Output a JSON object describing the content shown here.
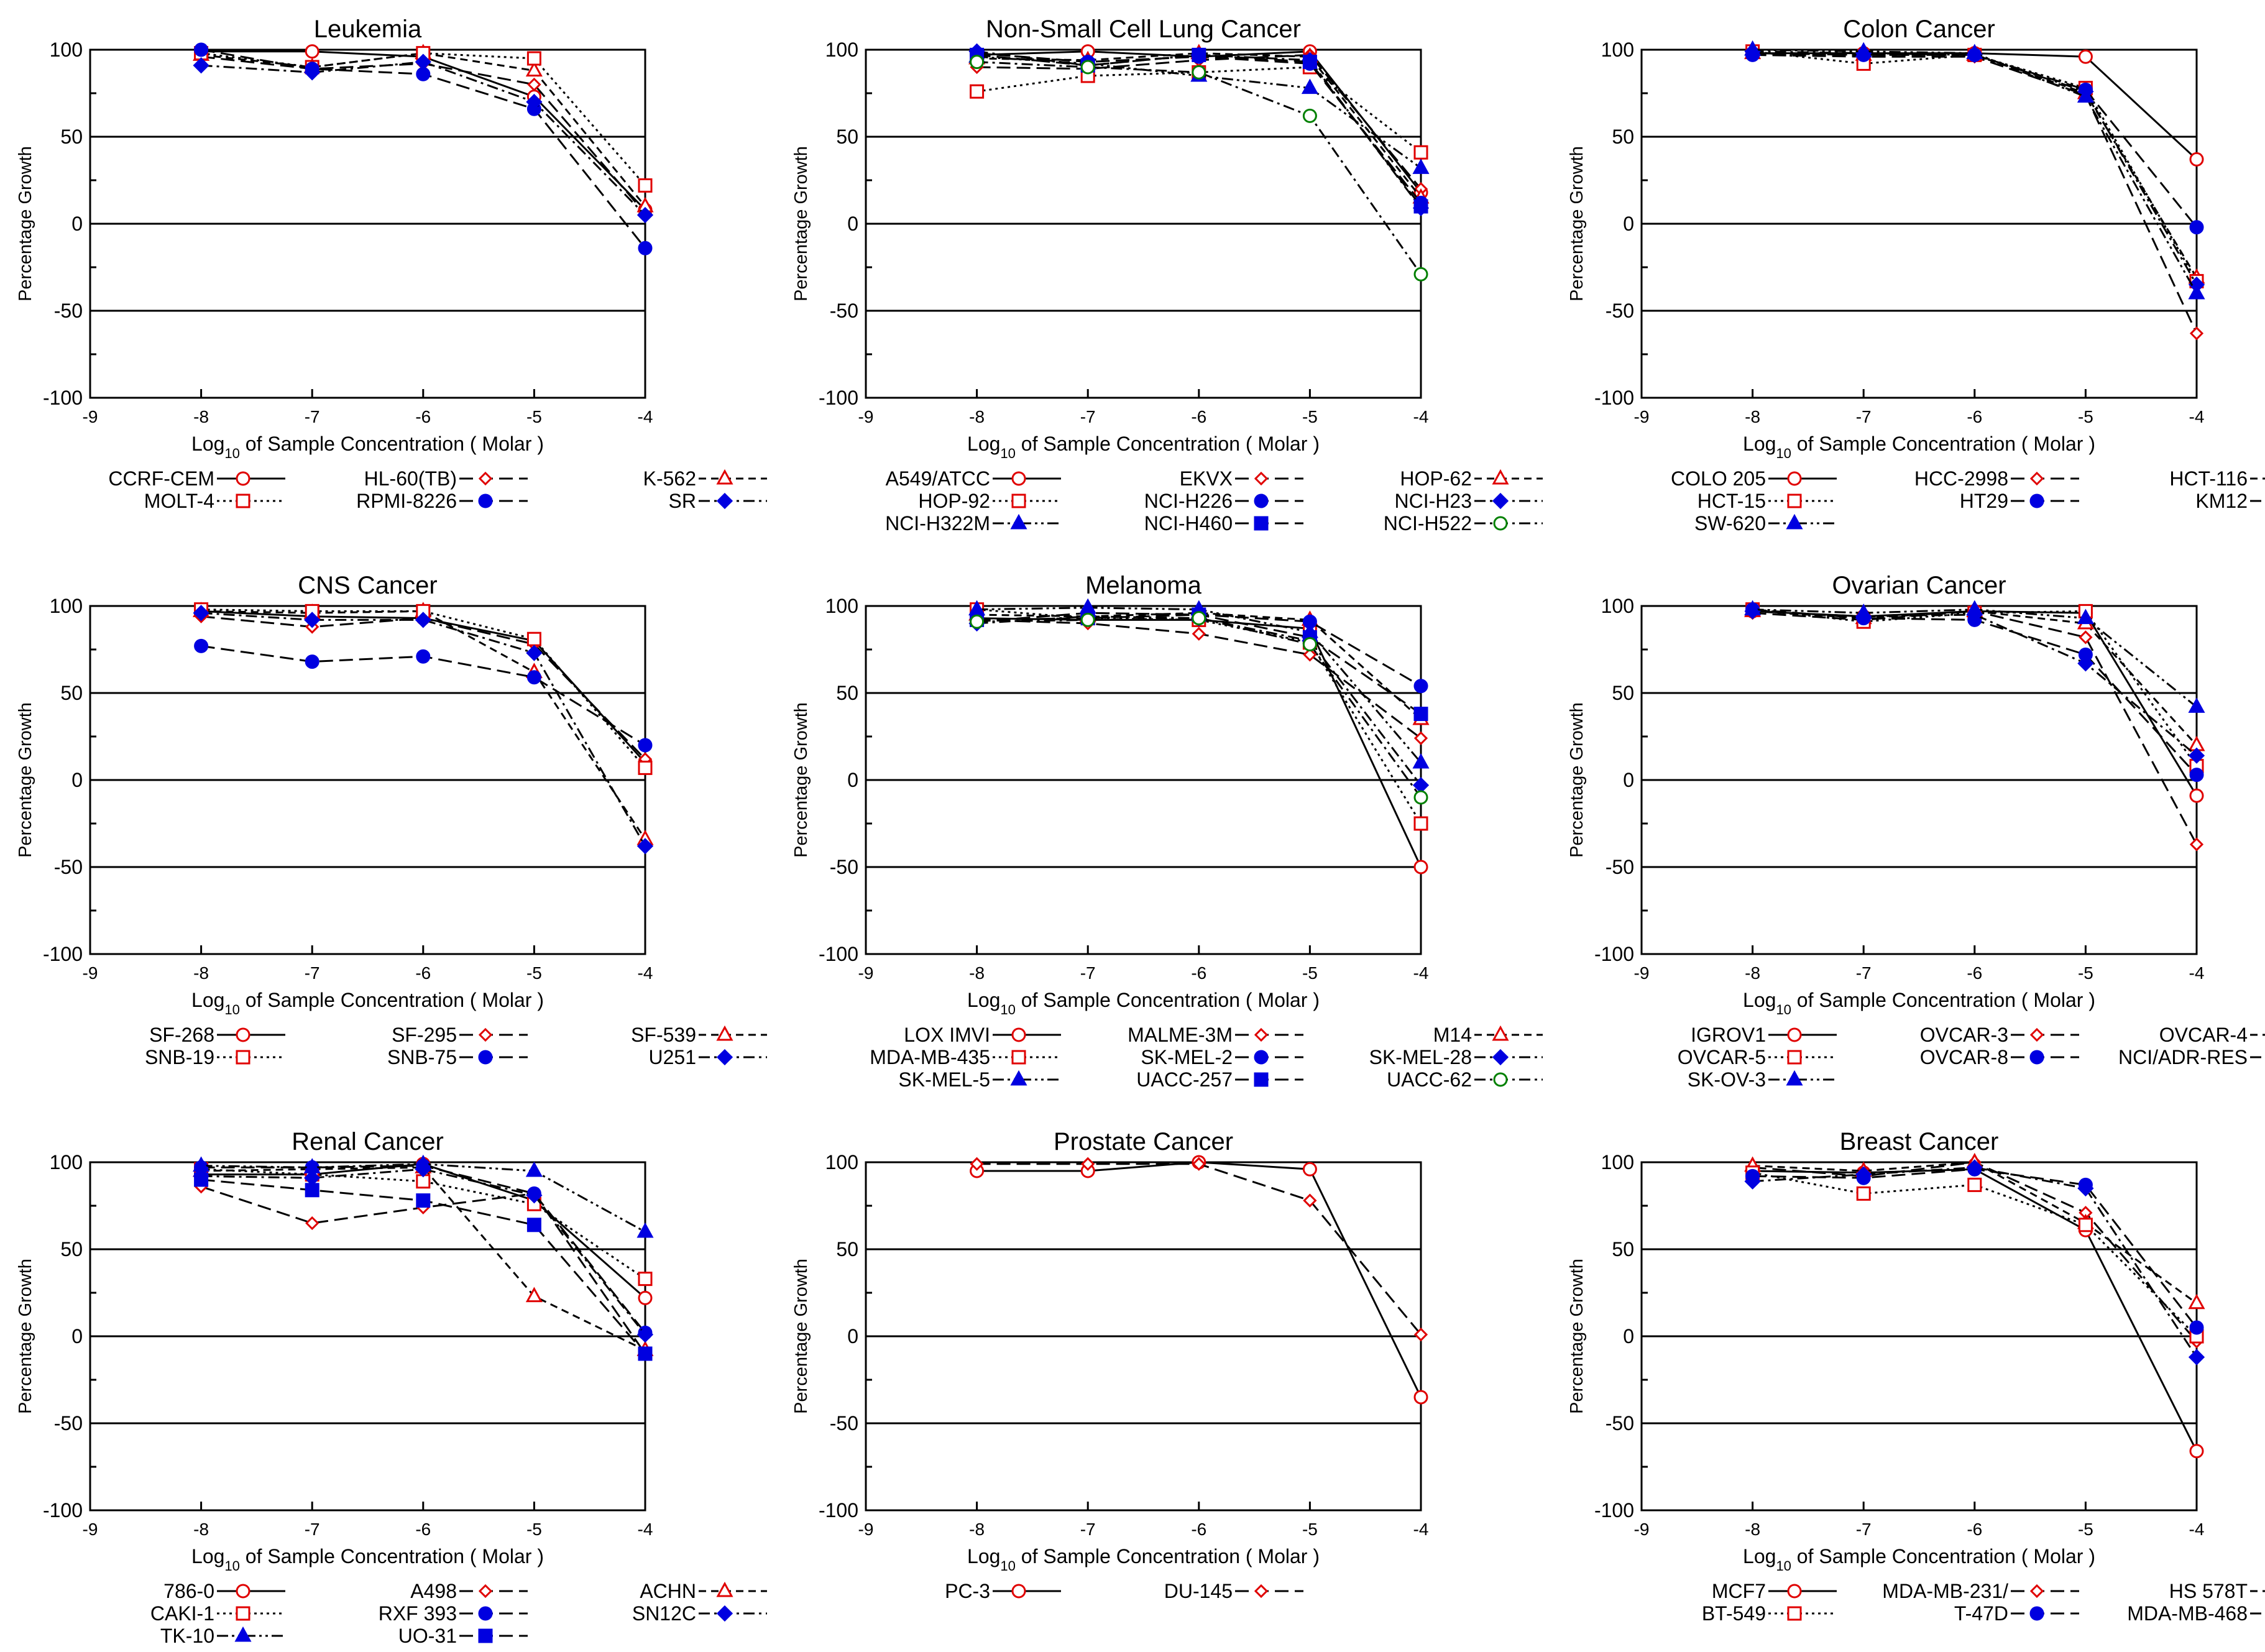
{
  "colors": {
    "red": "#e00000",
    "blue": "#0000e0",
    "green": "#008000",
    "black": "#000000"
  },
  "axis": {
    "xlabel_pre": "Log",
    "xlabel_sub": "10",
    "xlabel_post": " of Sample Concentration ( Molar )",
    "ylabel": "Percentage Growth",
    "xticks": [
      "-9",
      "-8",
      "-7",
      "-6",
      "-5",
      "-4"
    ],
    "yticks": [
      "100",
      "50",
      "0",
      "-50",
      "-100"
    ]
  },
  "chart_data": [
    {
      "type": "line",
      "title": "Leukemia",
      "x": [
        -8,
        -7,
        -6,
        -5,
        -4
      ],
      "xlim": [
        -9,
        -4
      ],
      "ylim": [
        -100,
        100
      ],
      "xlabel": "Log10 of Sample Concentration ( Molar )",
      "ylabel": "Percentage Growth",
      "series": [
        {
          "name": "CCRF-CEM",
          "values": [
            99,
            99,
            96,
            73,
            8
          ],
          "color": "red",
          "marker": "circle",
          "dash": "solid"
        },
        {
          "name": "HL-60(TB)",
          "values": [
            96,
            89,
            92,
            80,
            6
          ],
          "color": "red",
          "marker": "diamond",
          "dash": "longdash"
        },
        {
          "name": "K-562",
          "values": [
            97,
            90,
            98,
            88,
            10
          ],
          "color": "red",
          "marker": "triangle",
          "dash": "dash"
        },
        {
          "name": "MOLT-4",
          "values": [
            98,
            90,
            98,
            95,
            22
          ],
          "color": "red",
          "marker": "square",
          "dash": "dot"
        },
        {
          "name": "RPMI-8226",
          "values": [
            100,
            89,
            86,
            66,
            -14
          ],
          "color": "blue",
          "marker": "circle-filled",
          "dash": "longdash"
        },
        {
          "name": "SR",
          "values": [
            91,
            87,
            93,
            70,
            5
          ],
          "color": "blue",
          "marker": "diamond-filled",
          "dash": "dashdot"
        }
      ]
    },
    {
      "type": "line",
      "title": "Non-Small Cell Lung Cancer",
      "x": [
        -8,
        -7,
        -6,
        -5,
        -4
      ],
      "xlim": [
        -9,
        -4
      ],
      "ylim": [
        -100,
        100
      ],
      "xlabel": "Log10 of Sample Concentration ( Molar )",
      "ylabel": "Percentage Growth",
      "series": [
        {
          "name": "A549/ATCC",
          "values": [
            97,
            99,
            96,
            99,
            18
          ],
          "color": "red",
          "marker": "circle",
          "dash": "solid"
        },
        {
          "name": "EKVX",
          "values": [
            90,
            89,
            94,
            97,
            20
          ],
          "color": "red",
          "marker": "diamond",
          "dash": "longdash"
        },
        {
          "name": "HOP-62",
          "values": [
            95,
            94,
            98,
            96,
            15
          ],
          "color": "red",
          "marker": "triangle",
          "dash": "dash"
        },
        {
          "name": "HOP-92",
          "values": [
            76,
            85,
            87,
            90,
            41
          ],
          "color": "red",
          "marker": "square",
          "dash": "dot"
        },
        {
          "name": "NCI-H226",
          "values": [
            98,
            93,
            96,
            92,
            12
          ],
          "color": "blue",
          "marker": "circle-filled",
          "dash": "longdash"
        },
        {
          "name": "NCI-H23",
          "values": [
            99,
            91,
            97,
            94,
            9
          ],
          "color": "blue",
          "marker": "diamond-filled",
          "dash": "dashdot"
        },
        {
          "name": "NCI-H322M",
          "values": [
            96,
            92,
            85,
            78,
            32
          ],
          "color": "blue",
          "marker": "triangle-filled",
          "dash": "dashdotdot"
        },
        {
          "name": "NCI-H460",
          "values": [
            97,
            91,
            97,
            93,
            10
          ],
          "color": "blue",
          "marker": "square-filled",
          "dash": "longdash"
        },
        {
          "name": "NCI-H522",
          "values": [
            93,
            90,
            87,
            62,
            -29
          ],
          "color": "green",
          "marker": "circle",
          "dash": "dashdot"
        }
      ]
    },
    {
      "type": "line",
      "title": "Colon Cancer",
      "x": [
        -8,
        -7,
        -6,
        -5,
        -4
      ],
      "xlim": [
        -9,
        -4
      ],
      "ylim": [
        -100,
        100
      ],
      "xlabel": "Log10 of Sample Concentration ( Molar )",
      "ylabel": "Percentage Growth",
      "series": [
        {
          "name": "COLO 205",
          "values": [
            98,
            98,
            98,
            96,
            37
          ],
          "color": "red",
          "marker": "circle",
          "dash": "solid"
        },
        {
          "name": "HCC-2998",
          "values": [
            97,
            96,
            96,
            74,
            -63
          ],
          "color": "red",
          "marker": "diamond",
          "dash": "longdash"
        },
        {
          "name": "HCT-116",
          "values": [
            98,
            97,
            97,
            75,
            -31
          ],
          "color": "red",
          "marker": "triangle",
          "dash": "dash"
        },
        {
          "name": "HCT-15",
          "values": [
            99,
            92,
            97,
            78,
            -33
          ],
          "color": "red",
          "marker": "square",
          "dash": "dot"
        },
        {
          "name": "HT29",
          "values": [
            97,
            97,
            97,
            77,
            -2
          ],
          "color": "blue",
          "marker": "circle-filled",
          "dash": "longdash"
        },
        {
          "name": "KM12",
          "values": [
            99,
            98,
            97,
            76,
            -35
          ],
          "color": "blue",
          "marker": "diamond-filled",
          "dash": "dashdot"
        },
        {
          "name": "SW-620",
          "values": [
            100,
            99,
            98,
            73,
            -40
          ],
          "color": "blue",
          "marker": "triangle-filled",
          "dash": "dashdotdot"
        }
      ]
    },
    {
      "type": "line",
      "title": "CNS Cancer",
      "x": [
        -8,
        -7,
        -6,
        -5,
        -4
      ],
      "xlim": [
        -9,
        -4
      ],
      "ylim": [
        -100,
        100
      ],
      "xlabel": "Log10 of Sample Concentration ( Molar )",
      "ylabel": "Percentage Growth",
      "series": [
        {
          "name": "SF-268",
          "values": [
            97,
            94,
            93,
            80,
            10
          ],
          "color": "red",
          "marker": "circle",
          "dash": "solid"
        },
        {
          "name": "SF-295",
          "values": [
            94,
            88,
            93,
            78,
            12
          ],
          "color": "red",
          "marker": "diamond",
          "dash": "longdash"
        },
        {
          "name": "SF-539",
          "values": [
            97,
            96,
            97,
            62,
            -34
          ],
          "color": "red",
          "marker": "triangle",
          "dash": "dash"
        },
        {
          "name": "SNB-19",
          "values": [
            98,
            97,
            97,
            81,
            7
          ],
          "color": "red",
          "marker": "square",
          "dash": "dot"
        },
        {
          "name": "SNB-75",
          "values": [
            77,
            68,
            71,
            59,
            20
          ],
          "color": "blue",
          "marker": "circle-filled",
          "dash": "longdash"
        },
        {
          "name": "U251",
          "values": [
            96,
            92,
            92,
            73,
            -38
          ],
          "color": "blue",
          "marker": "diamond-filled",
          "dash": "dashdot"
        }
      ]
    },
    {
      "type": "line",
      "title": "Melanoma",
      "x": [
        -8,
        -7,
        -6,
        -5,
        -4
      ],
      "xlim": [
        -9,
        -4
      ],
      "ylim": [
        -100,
        100
      ],
      "xlabel": "Log10 of Sample Concentration ( Molar )",
      "ylabel": "Percentage Growth",
      "series": [
        {
          "name": "LOX IMVI",
          "values": [
            93,
            92,
            92,
            87,
            -50
          ],
          "color": "red",
          "marker": "circle",
          "dash": "solid"
        },
        {
          "name": "MALME-3M",
          "values": [
            92,
            90,
            84,
            72,
            24
          ],
          "color": "red",
          "marker": "diamond",
          "dash": "longdash"
        },
        {
          "name": "M14",
          "values": [
            95,
            94,
            96,
            92,
            35
          ],
          "color": "red",
          "marker": "triangle",
          "dash": "dash"
        },
        {
          "name": "MDA-MB-435",
          "values": [
            98,
            93,
            92,
            79,
            -25
          ],
          "color": "red",
          "marker": "square",
          "dash": "dot"
        },
        {
          "name": "SK-MEL-2",
          "values": [
            91,
            96,
            95,
            91,
            54
          ],
          "color": "blue",
          "marker": "circle-filled",
          "dash": "longdash"
        },
        {
          "name": "SK-MEL-28",
          "values": [
            90,
            94,
            93,
            80,
            -3
          ],
          "color": "blue",
          "marker": "diamond-filled",
          "dash": "dashdot"
        },
        {
          "name": "SK-MEL-5",
          "values": [
            98,
            99,
            98,
            85,
            10
          ],
          "color": "blue",
          "marker": "triangle-filled",
          "dash": "dashdotdot"
        },
        {
          "name": "UACC-257",
          "values": [
            92,
            93,
            95,
            82,
            38
          ],
          "color": "blue",
          "marker": "square-filled",
          "dash": "longdash"
        },
        {
          "name": "UACC-62",
          "values": [
            91,
            92,
            93,
            78,
            -10
          ],
          "color": "green",
          "marker": "circle",
          "dash": "dashdot"
        }
      ]
    },
    {
      "type": "line",
      "title": "Ovarian Cancer",
      "x": [
        -8,
        -7,
        -6,
        -5,
        -4
      ],
      "xlim": [
        -9,
        -4
      ],
      "ylim": [
        -100,
        100
      ],
      "xlabel": "Log10 of Sample Concentration ( Molar )",
      "ylabel": "Percentage Growth",
      "series": [
        {
          "name": "IGROV1",
          "values": [
            97,
            94,
            97,
            96,
            -9
          ],
          "color": "red",
          "marker": "circle",
          "dash": "solid"
        },
        {
          "name": "OVCAR-3",
          "values": [
            96,
            92,
            97,
            82,
            -37
          ],
          "color": "red",
          "marker": "diamond",
          "dash": "longdash"
        },
        {
          "name": "OVCAR-4",
          "values": [
            97,
            93,
            97,
            90,
            20
          ],
          "color": "red",
          "marker": "triangle",
          "dash": "dash"
        },
        {
          "name": "OVCAR-5",
          "values": [
            98,
            91,
            96,
            97,
            8
          ],
          "color": "red",
          "marker": "square",
          "dash": "dot"
        },
        {
          "name": "OVCAR-8",
          "values": [
            98,
            93,
            92,
            72,
            3
          ],
          "color": "blue",
          "marker": "circle-filled",
          "dash": "longdash"
        },
        {
          "name": "NCI/ADR-RES",
          "values": [
            97,
            94,
            95,
            67,
            14
          ],
          "color": "blue",
          "marker": "diamond-filled",
          "dash": "dashdot"
        },
        {
          "name": "SK-OV-3",
          "values": [
            98,
            96,
            98,
            93,
            42
          ],
          "color": "blue",
          "marker": "triangle-filled",
          "dash": "dashdotdot"
        }
      ]
    },
    {
      "type": "line",
      "title": "Renal Cancer",
      "x": [
        -8,
        -7,
        -6,
        -5,
        -4
      ],
      "xlim": [
        -9,
        -4
      ],
      "ylim": [
        -100,
        100
      ],
      "xlabel": "Log10 of Sample Concentration ( Molar )",
      "ylabel": "Percentage Growth",
      "series": [
        {
          "name": "786-0",
          "values": [
            93,
            93,
            99,
            78,
            22
          ],
          "color": "red",
          "marker": "circle",
          "dash": "solid"
        },
        {
          "name": "A498",
          "values": [
            86,
            65,
            74,
            82,
            -10
          ],
          "color": "red",
          "marker": "diamond",
          "dash": "longdash"
        },
        {
          "name": "ACHN",
          "values": [
            95,
            96,
            97,
            23,
            -8
          ],
          "color": "red",
          "marker": "triangle",
          "dash": "dash"
        },
        {
          "name": "CAKI-1",
          "values": [
            96,
            93,
            89,
            76,
            33
          ],
          "color": "red",
          "marker": "square",
          "dash": "dot"
        },
        {
          "name": "RXF 393",
          "values": [
            97,
            97,
            98,
            82,
            2
          ],
          "color": "blue",
          "marker": "circle-filled",
          "dash": "longdash"
        },
        {
          "name": "SN12C",
          "values": [
            92,
            91,
            96,
            81,
            1
          ],
          "color": "blue",
          "marker": "diamond-filled",
          "dash": "dashdot"
        },
        {
          "name": "TK-10",
          "values": [
            98,
            97,
            99,
            95,
            60
          ],
          "color": "blue",
          "marker": "triangle-filled",
          "dash": "dashdotdot"
        },
        {
          "name": "UO-31",
          "values": [
            90,
            84,
            78,
            64,
            -10
          ],
          "color": "blue",
          "marker": "square-filled",
          "dash": "longdash"
        }
      ]
    },
    {
      "type": "line",
      "title": "Prostate Cancer",
      "x": [
        -8,
        -7,
        -6,
        -5,
        -4
      ],
      "xlim": [
        -9,
        -4
      ],
      "ylim": [
        -100,
        100
      ],
      "xlabel": "Log10 of Sample Concentration ( Molar )",
      "ylabel": "Percentage Growth",
      "series": [
        {
          "name": "PC-3",
          "values": [
            95,
            95,
            100,
            96,
            -35
          ],
          "color": "red",
          "marker": "circle",
          "dash": "solid"
        },
        {
          "name": "DU-145",
          "values": [
            99,
            99,
            99,
            78,
            1
          ],
          "color": "red",
          "marker": "diamond",
          "dash": "longdash"
        }
      ]
    },
    {
      "type": "line",
      "title": "Breast Cancer",
      "x": [
        -8,
        -7,
        -6,
        -5,
        -4
      ],
      "xlim": [
        -9,
        -4
      ],
      "ylim": [
        -100,
        100
      ],
      "xlabel": "Log10 of Sample Concentration ( Molar )",
      "ylabel": "Percentage Growth",
      "series": [
        {
          "name": "MCF7",
          "values": [
            95,
            94,
            96,
            61,
            -66
          ],
          "color": "red",
          "marker": "circle",
          "dash": "solid"
        },
        {
          "name": "MDA-MB-231/",
          "values": [
            97,
            92,
            100,
            71,
            -3
          ],
          "color": "red",
          "marker": "diamond",
          "dash": "longdash"
        },
        {
          "name": "HS 578T",
          "values": [
            98,
            95,
            100,
            65,
            19
          ],
          "color": "red",
          "marker": "triangle",
          "dash": "dash"
        },
        {
          "name": "BT-549",
          "values": [
            94,
            82,
            87,
            64,
            0
          ],
          "color": "red",
          "marker": "square",
          "dash": "dot"
        },
        {
          "name": "T-47D",
          "values": [
            92,
            91,
            96,
            87,
            5
          ],
          "color": "blue",
          "marker": "circle-filled",
          "dash": "longdash"
        },
        {
          "name": "MDA-MB-468",
          "values": [
            89,
            93,
            97,
            85,
            -12
          ],
          "color": "blue",
          "marker": "diamond-filled",
          "dash": "dashdot"
        }
      ]
    }
  ]
}
